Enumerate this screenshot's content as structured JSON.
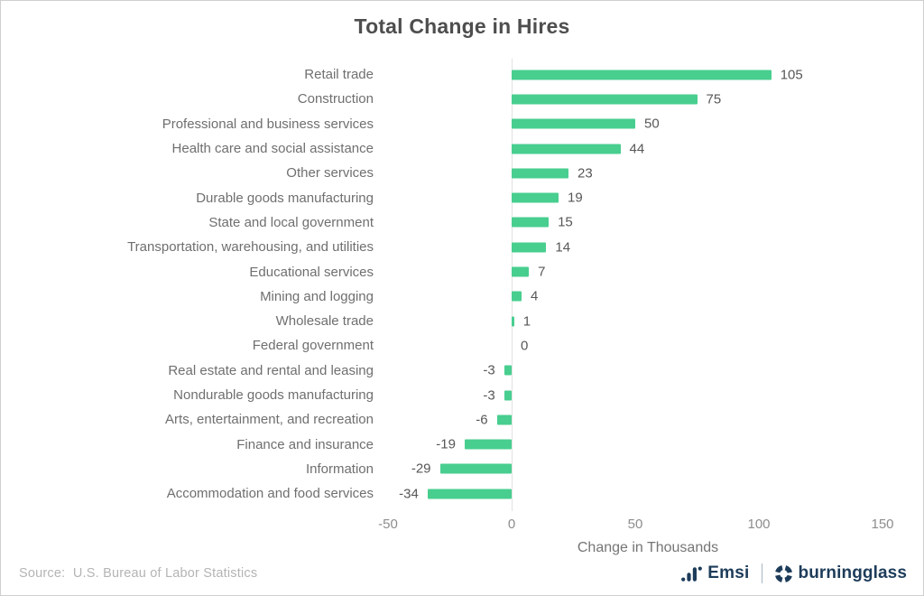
{
  "chart_data": {
    "type": "bar",
    "orientation": "horizontal",
    "title": "Total Change in Hires",
    "xlabel": "Change in Thousands",
    "xlim": [
      -50,
      150
    ],
    "xticks": [
      -50,
      0,
      50,
      100,
      150
    ],
    "categories": [
      "Retail trade",
      "Construction",
      "Professional and business services",
      "Health care and social assistance",
      "Other services",
      "Durable goods manufacturing",
      "State and local government",
      "Transportation, warehousing, and utilities",
      "Educational services",
      "Mining and logging",
      "Wholesale trade",
      "Federal government",
      "Real estate and rental and leasing",
      "Nondurable goods manufacturing",
      "Arts, entertainment, and recreation",
      "Finance and insurance",
      "Information",
      "Accommodation and food services"
    ],
    "values": [
      105,
      75,
      50,
      44,
      23,
      19,
      15,
      14,
      7,
      4,
      1,
      0,
      -3,
      -3,
      -6,
      -19,
      -29,
      -34
    ],
    "bar_color": "#48CE8F",
    "grid": false,
    "legend": false
  },
  "footer": {
    "source_label": "Source:",
    "source_text": "U.S. Bureau of Labor Statistics",
    "brand_emsi": "Emsi",
    "brand_burningglass": "burningglass",
    "brand_color": "#1D3C5A"
  }
}
